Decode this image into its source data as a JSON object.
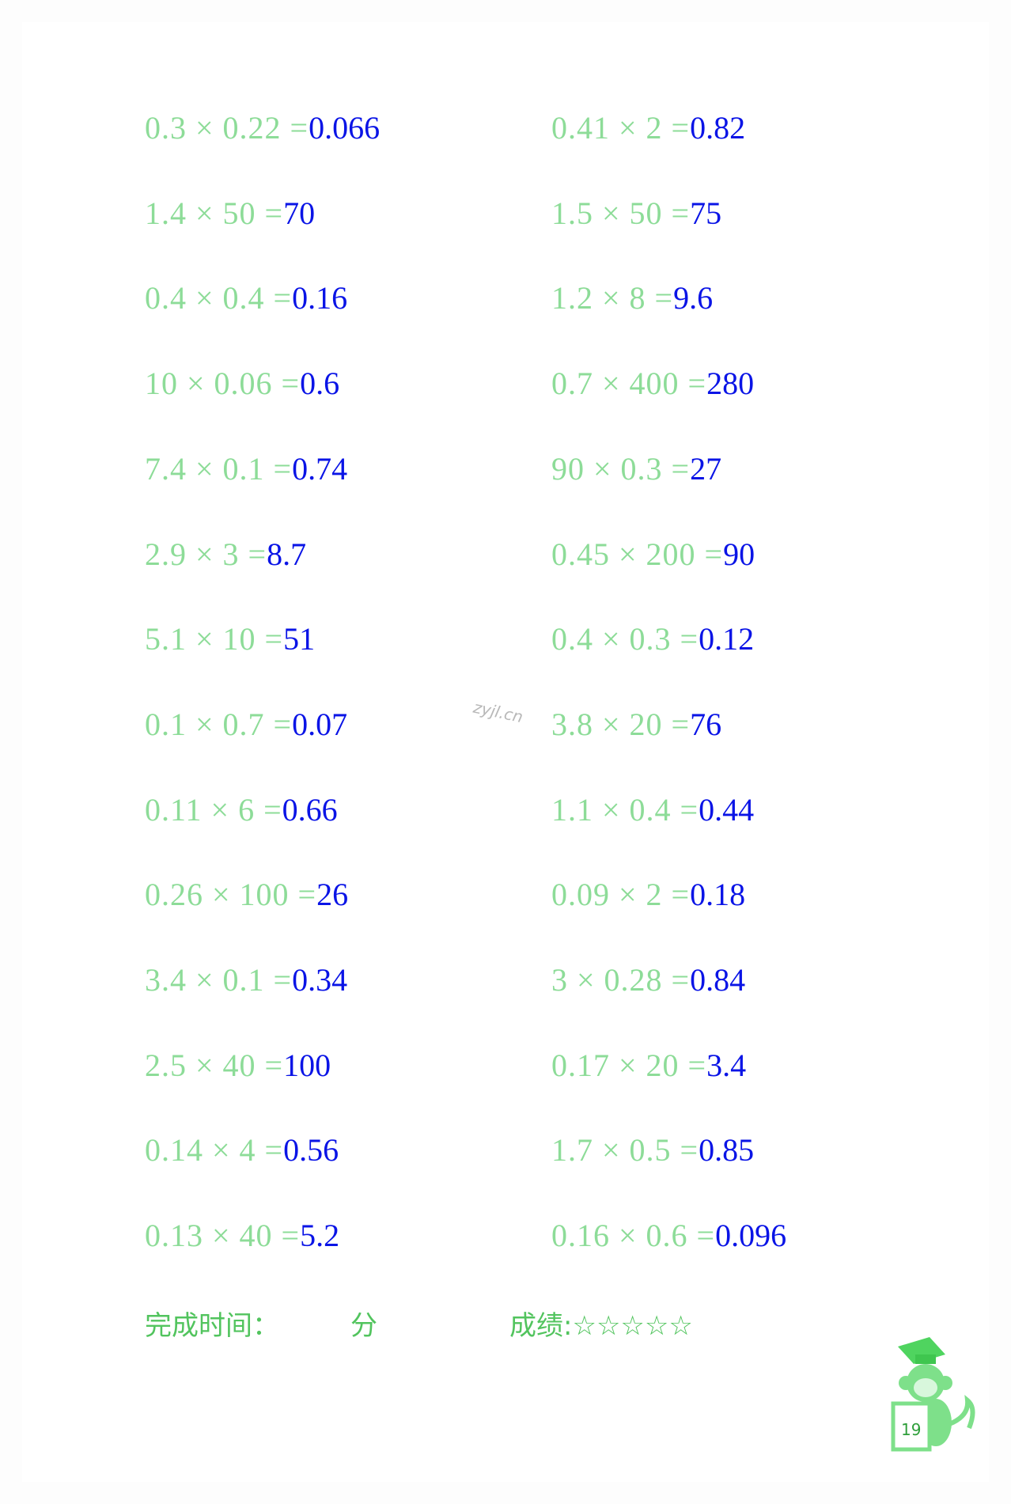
{
  "problems": [
    {
      "q": "0.3 × 0.22 =",
      "a": "0.066"
    },
    {
      "q": "0.41 × 2 =",
      "a": "0.82"
    },
    {
      "q": "1.4 × 50 =",
      "a": "70"
    },
    {
      "q": "1.5 × 50 =",
      "a": "75"
    },
    {
      "q": "0.4 × 0.4 =",
      "a": "0.16"
    },
    {
      "q": "1.2 × 8 =",
      "a": "9.6"
    },
    {
      "q": "10 × 0.06 =",
      "a": "0.6"
    },
    {
      "q": "0.7 × 400 =",
      "a": "280"
    },
    {
      "q": "7.4 × 0.1 =",
      "a": "0.74"
    },
    {
      "q": "90 × 0.3 =",
      "a": "27"
    },
    {
      "q": "2.9 × 3 =",
      "a": "8.7"
    },
    {
      "q": "0.45 × 200 =",
      "a": "90"
    },
    {
      "q": "5.1 × 10 =",
      "a": "51"
    },
    {
      "q": "0.4 × 0.3 =",
      "a": "0.12"
    },
    {
      "q": "0.1 × 0.7 =",
      "a": "0.07"
    },
    {
      "q": "3.8 × 20 =",
      "a": "76"
    },
    {
      "q": "0.11 × 6 =",
      "a": "0.66"
    },
    {
      "q": "1.1 × 0.4 =",
      "a": "0.44"
    },
    {
      "q": "0.26 × 100 =",
      "a": "26"
    },
    {
      "q": "0.09 × 2 =",
      "a": "0.18"
    },
    {
      "q": "3.4 × 0.1 =",
      "a": "0.34"
    },
    {
      "q": "3 × 0.28 =",
      "a": "0.84"
    },
    {
      "q": "2.5 × 40 =",
      "a": "100"
    },
    {
      "q": "0.17 × 20 =",
      "a": "3.4"
    },
    {
      "q": "0.14 × 4 =",
      "a": "0.56"
    },
    {
      "q": "1.7 × 0.5 =",
      "a": "0.85"
    },
    {
      "q": "0.13 × 40 =",
      "a": "5.2"
    },
    {
      "q": "0.16 × 0.6 =",
      "a": "0.096"
    }
  ],
  "footer": {
    "time_label": "完成时间：",
    "minutes_unit": "分",
    "score_label": "成绩:",
    "stars": "☆☆☆☆☆",
    "star_count": 5,
    "filled_stars": 0
  },
  "watermark": "zyjl.cn",
  "page_number": "19",
  "colors": {
    "question": "#8ddc98",
    "answer": "#0a14e6",
    "footer": "#52c45e"
  }
}
